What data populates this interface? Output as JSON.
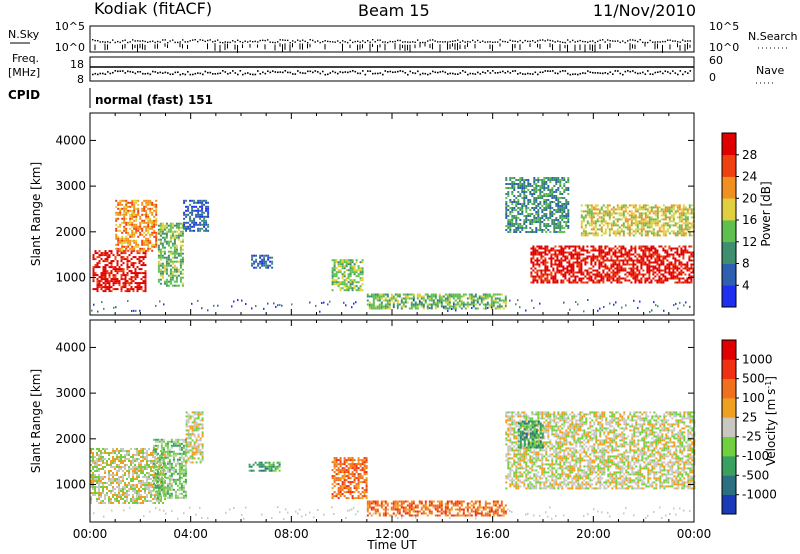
{
  "header": {
    "station": "Kodiak (fitACF)",
    "beam": "Beam 15",
    "date": "11/Nov/2010"
  },
  "strips": {
    "nsky_label": "N.Sky",
    "nsearch_label": "N.Search",
    "nsky_ticks": [
      "10^5",
      "10^0"
    ],
    "nsearch_ticks": [
      "10^5",
      "10^0"
    ],
    "freq_label_1": "Freq.",
    "freq_label_2": "[MHz]",
    "freq_ticks": [
      "18",
      "8"
    ],
    "nave_label": "Nave",
    "nave_ticks": [
      "60",
      "0"
    ],
    "cpid_label": "CPID",
    "cpid_text": "normal (fast) 151"
  },
  "chart_data": [
    {
      "type": "heatmap",
      "title": "",
      "parameter": "Power",
      "xlabel": "Time UT",
      "ylabel": "Slant Range [km]",
      "x_ticks": [
        "00:00",
        "04:00",
        "08:00",
        "12:00",
        "16:00",
        "20:00",
        "00:00"
      ],
      "y_ticks": [
        "1000",
        "2000",
        "3000",
        "4000"
      ],
      "xlim_hours": [
        0,
        24
      ],
      "ylim_km": [
        180,
        4600
      ],
      "colorbar": {
        "label": "Power [dB]",
        "tick_labels": [
          "4",
          "8",
          "12",
          "16",
          "20",
          "24",
          "28"
        ],
        "colors": [
          "#1f2ff0",
          "#2f5fb0",
          "#3f8f6f",
          "#5fbf4f",
          "#e0d040",
          "#f09020",
          "#f04010",
          "#e00000"
        ]
      },
      "echo_regions": [
        {
          "t_start": 0.1,
          "t_end": 2.2,
          "range_low_km": 700,
          "range_high_km": 1600,
          "level": 7
        },
        {
          "t_start": 1.0,
          "t_end": 2.6,
          "range_low_km": 1600,
          "range_high_km": 2700,
          "level": 5
        },
        {
          "t_start": 2.7,
          "t_end": 3.7,
          "range_low_km": 800,
          "range_high_km": 2200,
          "level": 3
        },
        {
          "t_start": 3.7,
          "t_end": 4.7,
          "range_low_km": 2000,
          "range_high_km": 2700,
          "level": 1
        },
        {
          "t_start": 6.4,
          "t_end": 7.2,
          "range_low_km": 1200,
          "range_high_km": 1500,
          "level": 1
        },
        {
          "t_start": 9.6,
          "t_end": 10.8,
          "range_low_km": 700,
          "range_high_km": 1400,
          "level": 3
        },
        {
          "t_start": 11.0,
          "t_end": 16.5,
          "range_low_km": 300,
          "range_high_km": 650,
          "level": 3
        },
        {
          "t_start": 16.5,
          "t_end": 19.0,
          "range_low_km": 2000,
          "range_high_km": 3200,
          "level": 2
        },
        {
          "t_start": 17.5,
          "t_end": 24.0,
          "range_low_km": 900,
          "range_high_km": 1700,
          "level": 7
        },
        {
          "t_start": 19.5,
          "t_end": 24.0,
          "range_low_km": 1900,
          "range_high_km": 2600,
          "level": 4
        }
      ]
    },
    {
      "type": "heatmap",
      "title": "",
      "parameter": "Velocity",
      "xlabel": "Time UT",
      "ylabel": "Slant Range [km]",
      "x_ticks": [
        "00:00",
        "04:00",
        "08:00",
        "12:00",
        "16:00",
        "20:00",
        "00:00"
      ],
      "y_ticks": [
        "1000",
        "2000",
        "3000",
        "4000"
      ],
      "xlim_hours": [
        0,
        24
      ],
      "ylim_km": [
        180,
        4600
      ],
      "colorbar": {
        "label": "Velocity [m s^-1]",
        "tick_labels": [
          "1000",
          "500",
          "100",
          "25",
          "-25",
          "-100",
          "-500",
          "-1000"
        ],
        "colors": [
          "#1a3ab8",
          "#2a7080",
          "#3aa060",
          "#70d040",
          "#c8c8c0",
          "#f0a020",
          "#f07020",
          "#f03010",
          "#e00000"
        ]
      },
      "echo_regions": [
        {
          "t_start": 0.0,
          "t_end": 3.0,
          "range_low_km": 600,
          "range_high_km": 1800,
          "level": 4
        },
        {
          "t_start": 2.5,
          "t_end": 3.8,
          "range_low_km": 700,
          "range_high_km": 2000,
          "level": 3
        },
        {
          "t_start": 3.8,
          "t_end": 4.5,
          "range_low_km": 1500,
          "range_high_km": 2600,
          "level": 4
        },
        {
          "t_start": 6.3,
          "t_end": 7.5,
          "range_low_km": 1300,
          "range_high_km": 1500,
          "level": 2
        },
        {
          "t_start": 9.6,
          "t_end": 11.0,
          "range_low_km": 700,
          "range_high_km": 1600,
          "level": 6
        },
        {
          "t_start": 11.0,
          "t_end": 16.5,
          "range_low_km": 300,
          "range_high_km": 650,
          "level": 6
        },
        {
          "t_start": 16.5,
          "t_end": 24.0,
          "range_low_km": 900,
          "range_high_km": 2600,
          "level": 4
        },
        {
          "t_start": 17.0,
          "t_end": 18.0,
          "range_low_km": 1800,
          "range_high_km": 2400,
          "level": 2
        }
      ]
    }
  ]
}
